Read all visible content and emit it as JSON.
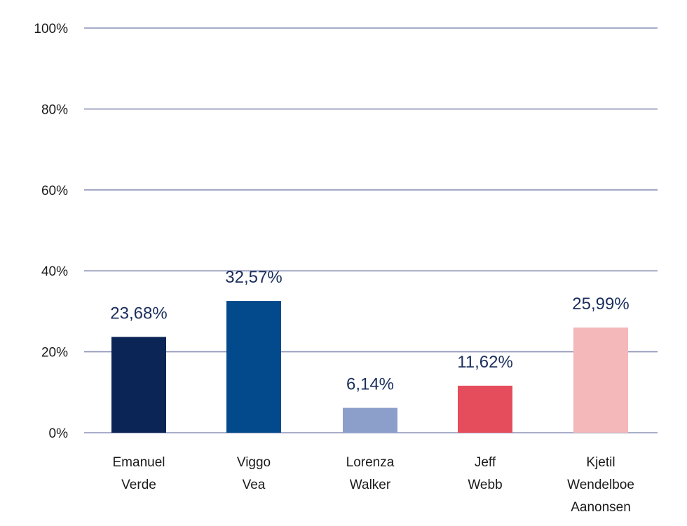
{
  "chart_data": {
    "type": "bar",
    "categories": [
      [
        "Emanuel",
        "Verde"
      ],
      [
        "Viggo",
        "Vea"
      ],
      [
        "Lorenza",
        "Walker"
      ],
      [
        "Jeff",
        "Webb"
      ],
      [
        "Kjetil",
        "Wendelboe",
        "Aanonsen"
      ]
    ],
    "values": [
      23.68,
      32.57,
      6.14,
      11.62,
      25.99
    ],
    "value_labels": [
      "23,68%",
      "32,57%",
      "6,14%",
      "11,62%",
      "25,99%"
    ],
    "colors": [
      "#0b2556",
      "#034a8c",
      "#8c9fcb",
      "#e54c5c",
      "#f4b8bb"
    ],
    "ylim": [
      0,
      100
    ],
    "y_ticks": [
      0,
      20,
      40,
      60,
      80,
      100
    ],
    "y_tick_labels": [
      "0%",
      "20%",
      "40%",
      "60%",
      "80%",
      "100%"
    ],
    "grid": true,
    "grid_color": "#8c92b8",
    "label_color": "#1b2f5c",
    "title": "",
    "xlabel": "",
    "ylabel": ""
  }
}
